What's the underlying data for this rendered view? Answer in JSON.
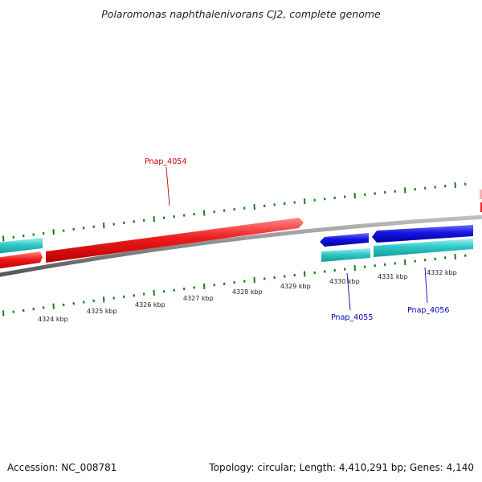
{
  "title": "Polaromonas naphthalenivorans CJ2, complete genome",
  "footer": {
    "accession": "Accession: NC_008781",
    "summary": "Topology: circular; Length: 4,410,291 bp; Genes: 4,140"
  },
  "map": {
    "colors": {
      "forward_cds": "#ee1c1c",
      "reverse_cds": "#1414e0",
      "gene": "#2ec8c8",
      "backbone": "#8a8a8a",
      "ticks": "#1a7a1a",
      "label_forward": "#cc0000",
      "label_reverse": "#0000bb"
    },
    "scale_labels": [
      "4324 kbp",
      "4325 kbp",
      "4326 kbp",
      "4327 kbp",
      "4328 kbp",
      "4329 kbp",
      "4330 kbp",
      "4331 kbp",
      "4332 kbp"
    ],
    "gene_labels": [
      {
        "name": "Pnap_4054",
        "strand": "forward"
      },
      {
        "name": "Pnap_4055",
        "strand": "reverse"
      },
      {
        "name": "Pnap_4056",
        "strand": "reverse"
      }
    ]
  }
}
